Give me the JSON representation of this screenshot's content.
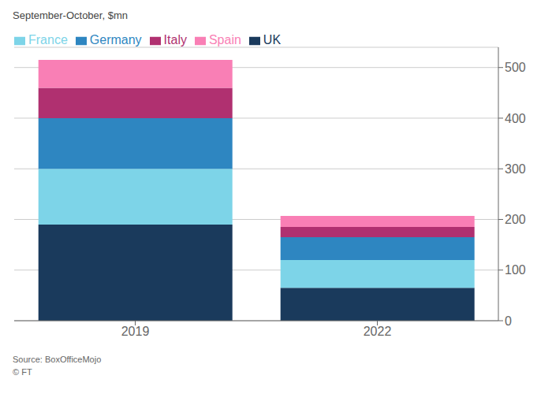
{
  "chart_data": {
    "type": "bar",
    "stacked": true,
    "ylabel": "September-October, $mn",
    "annotations": [
      "Source: BoxOfficeMojo",
      "© FT"
    ],
    "categories": [
      "2019",
      "2022"
    ],
    "series": [
      {
        "name": "UK",
        "color": "#1a3a5c",
        "values": [
          190,
          65
        ]
      },
      {
        "name": "France",
        "color": "#7dd4e8",
        "values": [
          110,
          55
        ]
      },
      {
        "name": "Germany",
        "color": "#2e86c1",
        "values": [
          100,
          45
        ]
      },
      {
        "name": "Italy",
        "color": "#b03070",
        "values": [
          60,
          20
        ]
      },
      {
        "name": "Spain",
        "color": "#f97fb5",
        "values": [
          55,
          22
        ]
      }
    ],
    "ylim": [
      0,
      540
    ],
    "yticks": [
      0,
      100,
      200,
      300,
      400,
      500
    ],
    "grid": true,
    "legend": "upper left"
  }
}
